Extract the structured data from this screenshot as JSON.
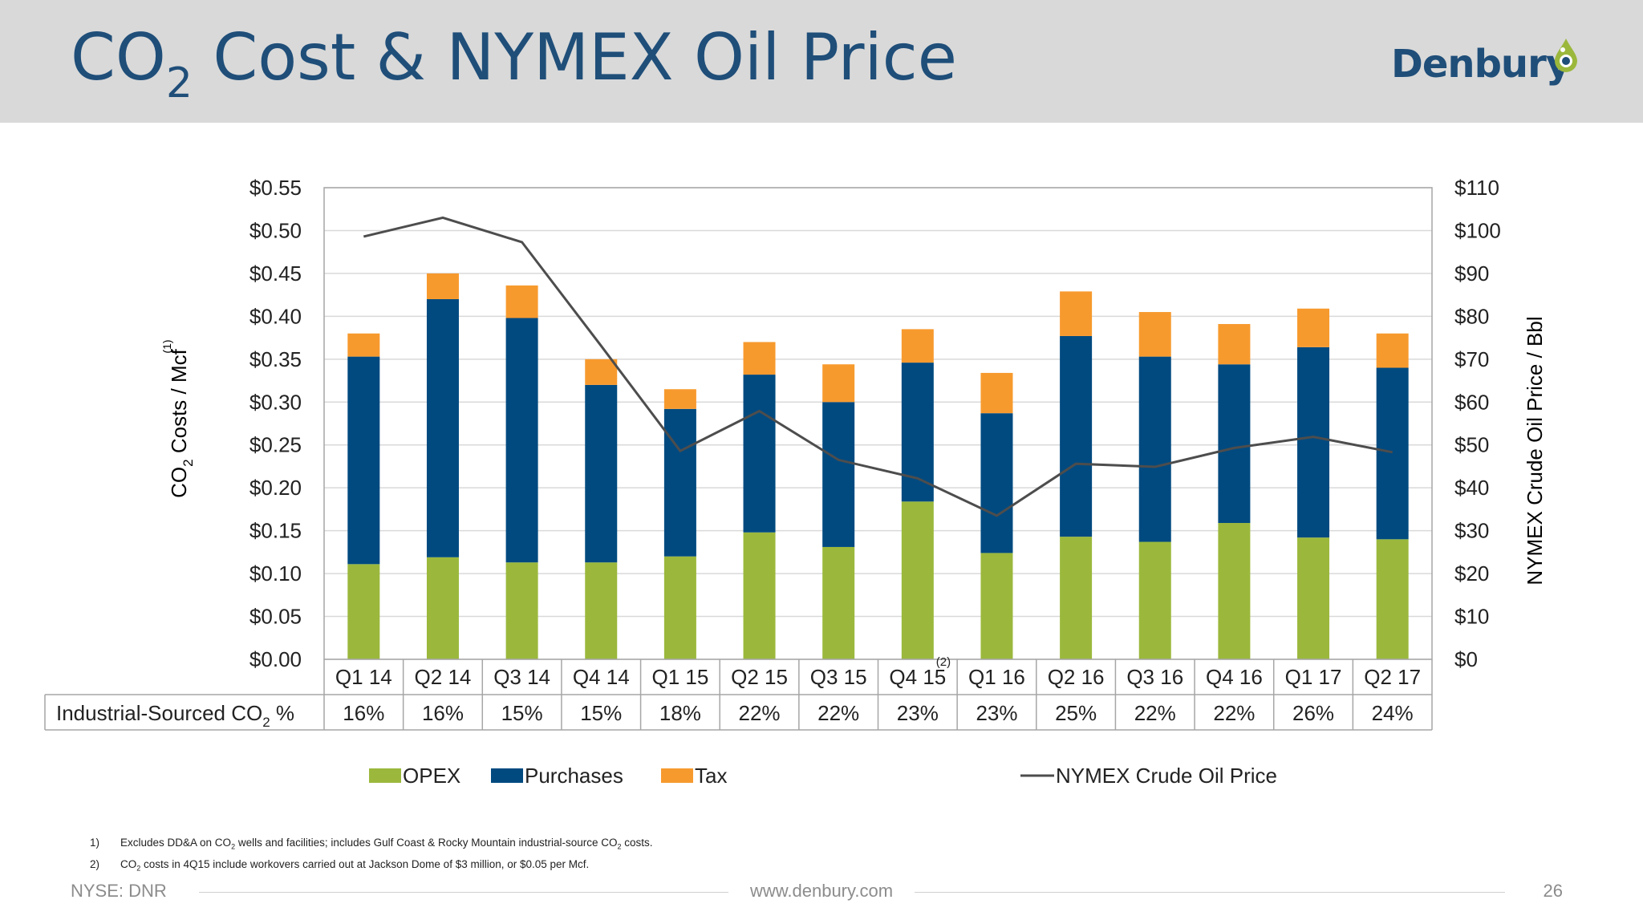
{
  "header": {
    "title_pre": "CO",
    "title_sub": "2",
    "title_post": " Cost & NYMEX Oil Price",
    "logo_text": "Denbury",
    "logo_icon": "oil-drop-icon"
  },
  "chart_data": {
    "type": "bar",
    "stacked": true,
    "categories": [
      "Q1 14",
      "Q2 14",
      "Q3 14",
      "Q4 14",
      "Q1 15",
      "Q2 15",
      "Q3 15",
      "Q4 15",
      "Q1 16",
      "Q2 16",
      "Q3 16",
      "Q4 16",
      "Q1 17",
      "Q2 17"
    ],
    "category_superscripts": {
      "7": "(2)"
    },
    "series": [
      {
        "name": "OPEX",
        "color": "#9bb83c",
        "values": [
          0.111,
          0.119,
          0.113,
          0.113,
          0.12,
          0.148,
          0.131,
          0.184,
          0.124,
          0.143,
          0.137,
          0.159,
          0.142,
          0.14
        ]
      },
      {
        "name": "Purchases",
        "color": "#004a80",
        "values": [
          0.242,
          0.301,
          0.285,
          0.207,
          0.172,
          0.184,
          0.169,
          0.162,
          0.163,
          0.234,
          0.216,
          0.185,
          0.222,
          0.2
        ]
      },
      {
        "name": "Tax",
        "color": "#f79a2e",
        "values": [
          0.027,
          0.03,
          0.038,
          0.03,
          0.023,
          0.038,
          0.044,
          0.039,
          0.047,
          0.052,
          0.052,
          0.047,
          0.045,
          0.04
        ]
      }
    ],
    "line_series": {
      "name": "NYMEX Crude Oil Price",
      "color": "#4d4d4d",
      "axis": "right",
      "values": [
        98.6,
        103.0,
        97.3,
        73.1,
        48.6,
        57.9,
        46.5,
        42.2,
        33.5,
        45.6,
        44.9,
        49.3,
        51.9,
        48.3
      ]
    },
    "left_axis": {
      "label_pre": "CO",
      "label_sub": "2",
      "label_post": " Costs / Mcf",
      "label_superscript": "(1)",
      "min": 0,
      "max": 0.55,
      "step": 0.05,
      "ticks": [
        "$0.00",
        "$0.05",
        "$0.10",
        "$0.15",
        "$0.20",
        "$0.25",
        "$0.30",
        "$0.35",
        "$0.40",
        "$0.45",
        "$0.50",
        "$0.55"
      ]
    },
    "right_axis": {
      "label": "NYMEX Crude Oil Price / Bbl",
      "min": 0,
      "max": 110,
      "step": 10,
      "ticks": [
        "$0",
        "$10",
        "$20",
        "$30",
        "$40",
        "$50",
        "$60",
        "$70",
        "$80",
        "$90",
        "$100",
        "$110"
      ]
    },
    "grid": true,
    "table_row": {
      "label_pre": "Industrial-Sourced CO",
      "label_sub": "2",
      "label_post": " %",
      "values": [
        "16%",
        "16%",
        "15%",
        "15%",
        "18%",
        "22%",
        "22%",
        "23%",
        "23%",
        "25%",
        "22%",
        "22%",
        "26%",
        "24%"
      ]
    },
    "legend": {
      "position": "bottom",
      "items": [
        "OPEX",
        "Purchases",
        "Tax",
        "NYMEX Crude Oil Price"
      ]
    }
  },
  "footnotes": [
    {
      "num": "1)",
      "pre": "Excludes DD&A on CO",
      "sub": "2",
      "mid": " wells and facilities; includes Gulf Coast & Rocky Mountain industrial-source CO",
      "sub2": "2",
      "post": " costs."
    },
    {
      "num": "2)",
      "pre": "CO",
      "sub": "2",
      "mid": " costs in 4Q15 include workovers carried out at Jackson Dome of $3 million, or $0.05 per Mcf.",
      "sub2": "",
      "post": ""
    }
  ],
  "footer": {
    "left": "NYSE: DNR",
    "center": "www.denbury.com",
    "page": "26"
  }
}
